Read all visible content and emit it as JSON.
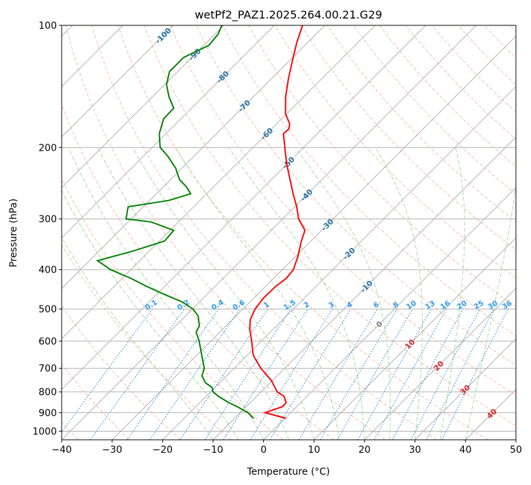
{
  "chart_data": {
    "type": "line",
    "subtype": "skew-t log-p diagram",
    "title": "wetPf2_PAZ1.2025.264.00.21.G29",
    "xlabel": "Temperature (°C)",
    "ylabel": "Pressure (hPa)",
    "xlim": [
      -40,
      50
    ],
    "ylim": [
      1050,
      100
    ],
    "x_ticks": [
      -40,
      -30,
      -20,
      -10,
      0,
      10,
      20,
      30,
      40,
      50
    ],
    "x_tick_labels": [
      "−40",
      "−30",
      "−20",
      "−10",
      "0",
      "10",
      "20",
      "30",
      "40",
      "50"
    ],
    "y_ticks": [
      100,
      200,
      300,
      400,
      500,
      600,
      700,
      800,
      900,
      1000
    ],
    "y_tick_labels": [
      "100",
      "200",
      "300",
      "400",
      "500",
      "600",
      "700",
      "800",
      "900",
      "1000"
    ],
    "series": [
      {
        "name": "Temperature",
        "color": "#ff0000",
        "points": [
          [
            930,
            0.2
          ],
          [
            900,
            -5.1
          ],
          [
            870,
            -2.8
          ],
          [
            850,
            -2.9
          ],
          [
            820,
            -4.6
          ],
          [
            800,
            -6.8
          ],
          [
            750,
            -10.2
          ],
          [
            700,
            -14.7
          ],
          [
            650,
            -18.8
          ],
          [
            600,
            -21.9
          ],
          [
            560,
            -24.7
          ],
          [
            530,
            -26.5
          ],
          [
            500,
            -27.6
          ],
          [
            470,
            -28.1
          ],
          [
            440,
            -28.0
          ],
          [
            420,
            -27.5
          ],
          [
            400,
            -27.8
          ],
          [
            370,
            -29.6
          ],
          [
            340,
            -31.9
          ],
          [
            320,
            -33.3
          ],
          [
            300,
            -36.8
          ],
          [
            280,
            -39.6
          ],
          [
            260,
            -42.9
          ],
          [
            240,
            -46.3
          ],
          [
            220,
            -50.0
          ],
          [
            200,
            -53.7
          ],
          [
            185,
            -56.7
          ],
          [
            180,
            -56.6
          ],
          [
            175,
            -57.4
          ],
          [
            165,
            -60.3
          ],
          [
            150,
            -63.6
          ],
          [
            135,
            -66.7
          ],
          [
            120,
            -69.9
          ],
          [
            110,
            -72.2
          ],
          [
            100,
            -74.4
          ]
        ]
      },
      {
        "name": "Dewpoint",
        "color": "#008000",
        "points": [
          [
            930,
            -6.2
          ],
          [
            900,
            -8.5
          ],
          [
            870,
            -11.8
          ],
          [
            850,
            -14.3
          ],
          [
            820,
            -17.6
          ],
          [
            800,
            -19.5
          ],
          [
            780,
            -20.6
          ],
          [
            760,
            -22.8
          ],
          [
            730,
            -24.9
          ],
          [
            700,
            -25.9
          ],
          [
            650,
            -29.0
          ],
          [
            600,
            -32.3
          ],
          [
            570,
            -34.7
          ],
          [
            550,
            -35.3
          ],
          [
            520,
            -37.5
          ],
          [
            500,
            -39.9
          ],
          [
            480,
            -43.5
          ],
          [
            460,
            -48.5
          ],
          [
            440,
            -53.5
          ],
          [
            420,
            -58.3
          ],
          [
            400,
            -64.0
          ],
          [
            380,
            -68.4
          ],
          [
            360,
            -63.3
          ],
          [
            340,
            -59.0
          ],
          [
            320,
            -59.3
          ],
          [
            305,
            -65.5
          ],
          [
            300,
            -71.0
          ],
          [
            280,
            -73.0
          ],
          [
            270,
            -66.2
          ],
          [
            260,
            -63.2
          ],
          [
            250,
            -65.4
          ],
          [
            240,
            -68.2
          ],
          [
            225,
            -71.2
          ],
          [
            210,
            -75.2
          ],
          [
            200,
            -78.4
          ],
          [
            185,
            -81.3
          ],
          [
            170,
            -83.4
          ],
          [
            160,
            -83.5
          ],
          [
            150,
            -86.7
          ],
          [
            140,
            -89.6
          ],
          [
            130,
            -91.6
          ],
          [
            120,
            -91.6
          ],
          [
            112,
            -89.0
          ],
          [
            105,
            -89.4
          ],
          [
            100,
            -90.4
          ]
        ]
      }
    ],
    "reference_lines": {
      "dry_adiabats_theta_c": [
        -40,
        -30,
        -20,
        -10,
        0,
        10,
        20,
        30,
        40,
        50,
        60,
        70,
        80,
        90,
        100,
        110,
        120,
        130,
        140,
        150,
        160,
        170,
        180,
        190,
        200,
        210,
        220,
        230,
        240,
        250,
        260
      ],
      "moist_adiabats_start_c": [
        -10,
        -5,
        0,
        5,
        10,
        15,
        20,
        25,
        30,
        35,
        40
      ],
      "mixing_ratio_lines_gkg": [
        0.1,
        0.2,
        0.4,
        0.6,
        1,
        1.5,
        2,
        3,
        4,
        6,
        8,
        10,
        13,
        16,
        20,
        25,
        30,
        36
      ]
    },
    "isotherm_labels": [
      {
        "text": "-100",
        "t": -100
      },
      {
        "text": "-90",
        "t": -90
      },
      {
        "text": "-80",
        "t": -80
      },
      {
        "text": "-70",
        "t": -70
      },
      {
        "text": "-60",
        "t": -60
      },
      {
        "text": "-50",
        "t": -50
      },
      {
        "text": "-40",
        "t": -40
      },
      {
        "text": "-30",
        "t": -30
      },
      {
        "text": "-20",
        "t": -20
      },
      {
        "text": "-10",
        "t": -10
      },
      {
        "text": "0",
        "t": 0
      },
      {
        "text": "10",
        "t": 10
      },
      {
        "text": "20",
        "t": 20
      },
      {
        "text": "30",
        "t": 30
      },
      {
        "text": "40",
        "t": 40
      }
    ],
    "mixing_ratio_labels": [
      "0.1",
      "0.2",
      "0.4",
      "0.6",
      "1",
      "1.5",
      "2",
      "3",
      "4",
      "6",
      "8",
      "10",
      "13",
      "16",
      "20",
      "25",
      "30",
      "36"
    ],
    "colors": {
      "isotherm": "#b0b0b0",
      "isobar": "#b0b0b0",
      "dry_adiabat": "#f4a582",
      "moist_adiabat": "#a6d8a0",
      "mixing_ratio": "#2b8cdb",
      "label_cold": "#2471a3",
      "label_zero": "#808080",
      "label_warm": "#d62728"
    }
  }
}
